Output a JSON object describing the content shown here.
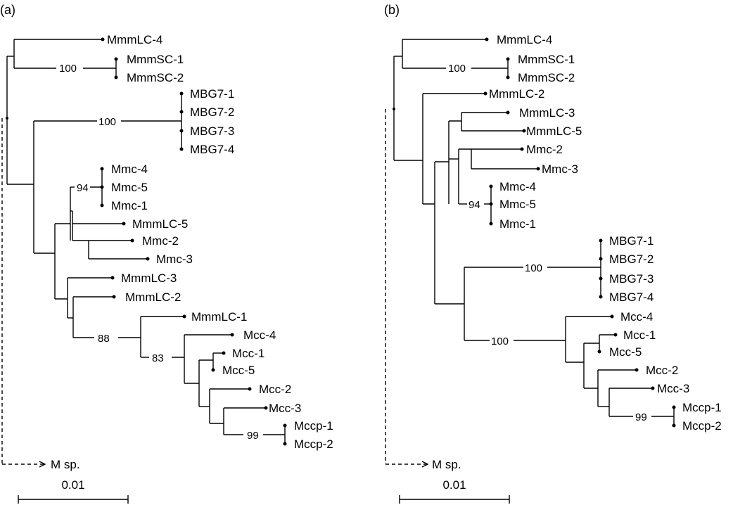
{
  "panels": [
    {
      "label": "(a)",
      "outgroup": "M sp.",
      "scale_label": "0.01",
      "leaves": [
        "MmmLC-4",
        "MmmSC-1",
        "MmmSC-2",
        "MBG7-1",
        "MBG7-2",
        "MBG7-3",
        "MBG7-4",
        "Mmc-4",
        "Mmc-5",
        "Mmc-1",
        "MmmLC-5",
        "Mmc-2",
        "Mmc-3",
        "MmmLC-3",
        "MmmLC-2",
        "MmmLC-1",
        "Mcc-4",
        "Mcc-1",
        "Mcc-5",
        "Mcc-2",
        "Mcc-3",
        "Mccp-1",
        "Mccp-2"
      ],
      "bootstrap": [
        "100",
        "100",
        "94",
        "88",
        "83",
        "99"
      ]
    },
    {
      "label": "(b)",
      "outgroup": "M sp.",
      "scale_label": "0.01",
      "leaves": [
        "MmmLC-4",
        "MmmSC-1",
        "MmmSC-2",
        "MmmLC-2",
        "MmmLC-3",
        "MmmLC-5",
        "Mmc-2",
        "Mmc-3",
        "Mmc-4",
        "Mmc-5",
        "Mmc-1",
        "MBG7-1",
        "MBG7-2",
        "MBG7-3",
        "MBG7-4",
        "Mcc-4",
        "Mcc-1",
        "Mcc-5",
        "Mcc-2",
        "Mcc-3",
        "Mccp-1",
        "Mccp-2"
      ],
      "bootstrap": [
        "100",
        "94",
        "100",
        "100",
        "99"
      ]
    }
  ]
}
